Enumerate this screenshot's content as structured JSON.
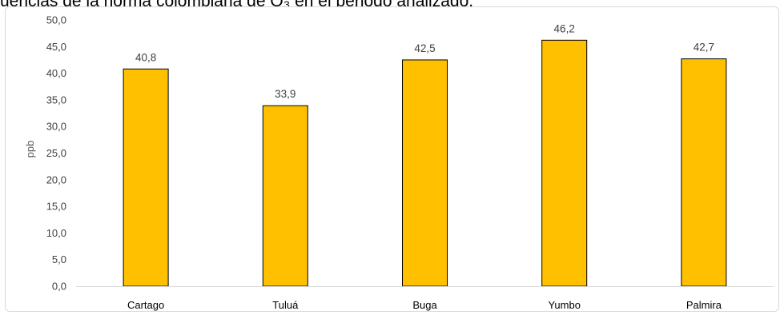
{
  "header": {
    "text": "uencias de la norma colombiana de O₃ en el periodo analizado."
  },
  "chart_data": {
    "type": "bar",
    "categories": [
      "Cartago",
      "Tuluá",
      "Buga",
      "Yumbo",
      "Palmira"
    ],
    "values": [
      40.8,
      33.9,
      42.5,
      46.2,
      42.7
    ],
    "data_labels": [
      "40,8",
      "33,9",
      "42,5",
      "46,2",
      "42,7"
    ],
    "ylabel": "ppb",
    "xlabel": "",
    "ylim": [
      0,
      50
    ],
    "yticks": [
      "0,0",
      "5,0",
      "10,0",
      "15,0",
      "20,0",
      "25,0",
      "30,0",
      "35,0",
      "40,0",
      "45,0",
      "50,0"
    ],
    "grid": false,
    "legend": "none",
    "bar_color": "#FFC000",
    "bar_edge_color": "#000000"
  }
}
